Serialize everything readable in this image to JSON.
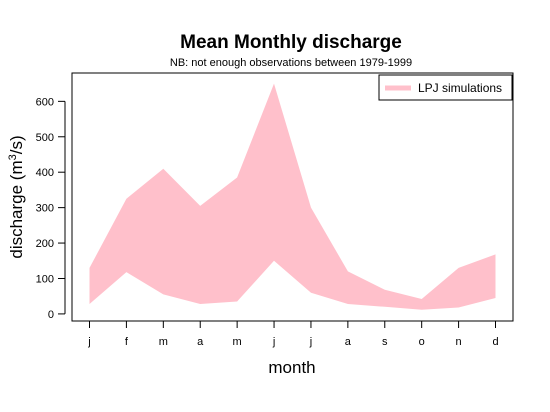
{
  "chart_data": {
    "type": "area",
    "title": "Mean Monthly discharge",
    "subtitle": "NB: not enough observations between 1979-1999",
    "xlabel": "month",
    "ylabel": {
      "prefix": "discharge (m",
      "superscript": "3",
      "suffix": "/s)"
    },
    "categories": [
      "j",
      "f",
      "m",
      "a",
      "m",
      "j",
      "j",
      "a",
      "s",
      "o",
      "n",
      "d"
    ],
    "yticks": [
      "0",
      "100",
      "200",
      "300",
      "400",
      "500",
      "600"
    ],
    "ylim": [
      -20,
      680
    ],
    "series": [
      {
        "name": "LPJ simulations",
        "kind": "band",
        "color": "#ffc0cb",
        "lower": [
          28,
          118,
          55,
          28,
          35,
          150,
          60,
          28,
          20,
          12,
          18,
          45
        ],
        "upper": [
          130,
          325,
          410,
          305,
          385,
          650,
          300,
          120,
          68,
          42,
          130,
          168
        ]
      }
    ],
    "legend": {
      "position": "top-right"
    },
    "grid": false
  }
}
